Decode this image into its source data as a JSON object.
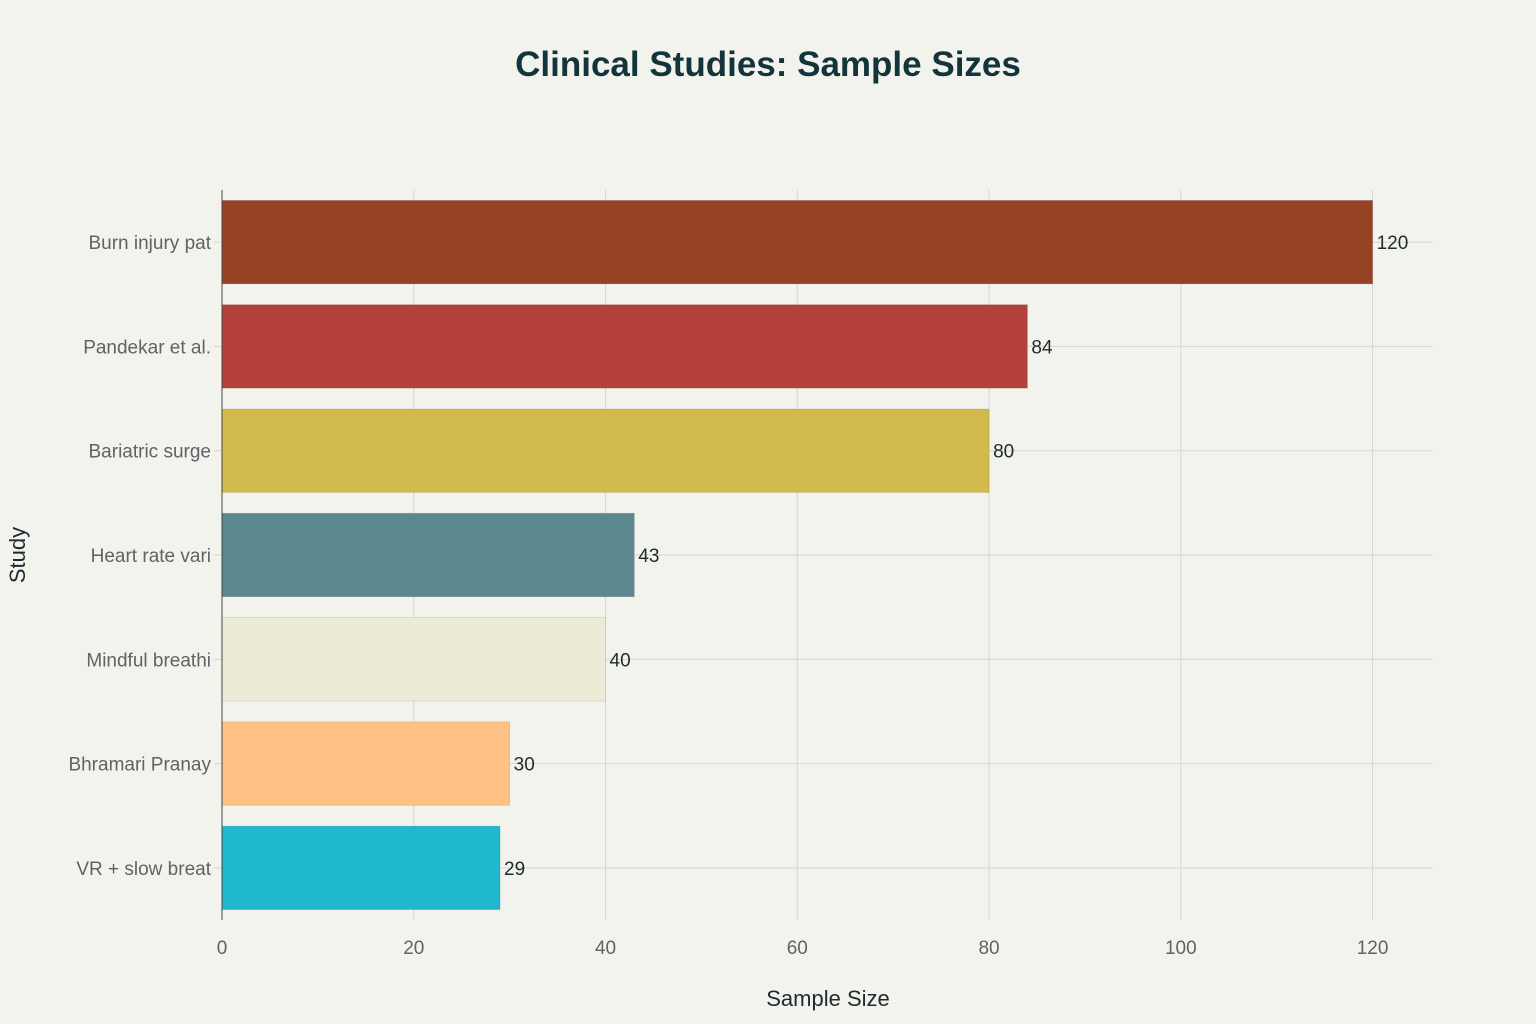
{
  "chart_data": {
    "type": "bar",
    "orientation": "horizontal",
    "title": "Clinical Studies: Sample Sizes",
    "xlabel": "Sample Size",
    "ylabel": "Study",
    "categories": [
      "Burn injury pat",
      "Pandekar et al.",
      "Bariatric surge",
      "Heart rate vari",
      "Mindful breathi",
      "Bhramari Pranay",
      "VR + slow breat"
    ],
    "values": [
      120,
      84,
      80,
      43,
      40,
      30,
      29
    ],
    "colors": [
      "#964325",
      "#B4413C",
      "#D2BA4C",
      "#5D878F",
      "#ECEBD5",
      "#FFC185",
      "#1FB8CD"
    ],
    "xlim": [
      0,
      126.3
    ],
    "xticks": [
      0,
      20,
      40,
      60,
      80,
      100,
      120
    ],
    "grid": true,
    "legend": "none",
    "data_labels": true
  }
}
